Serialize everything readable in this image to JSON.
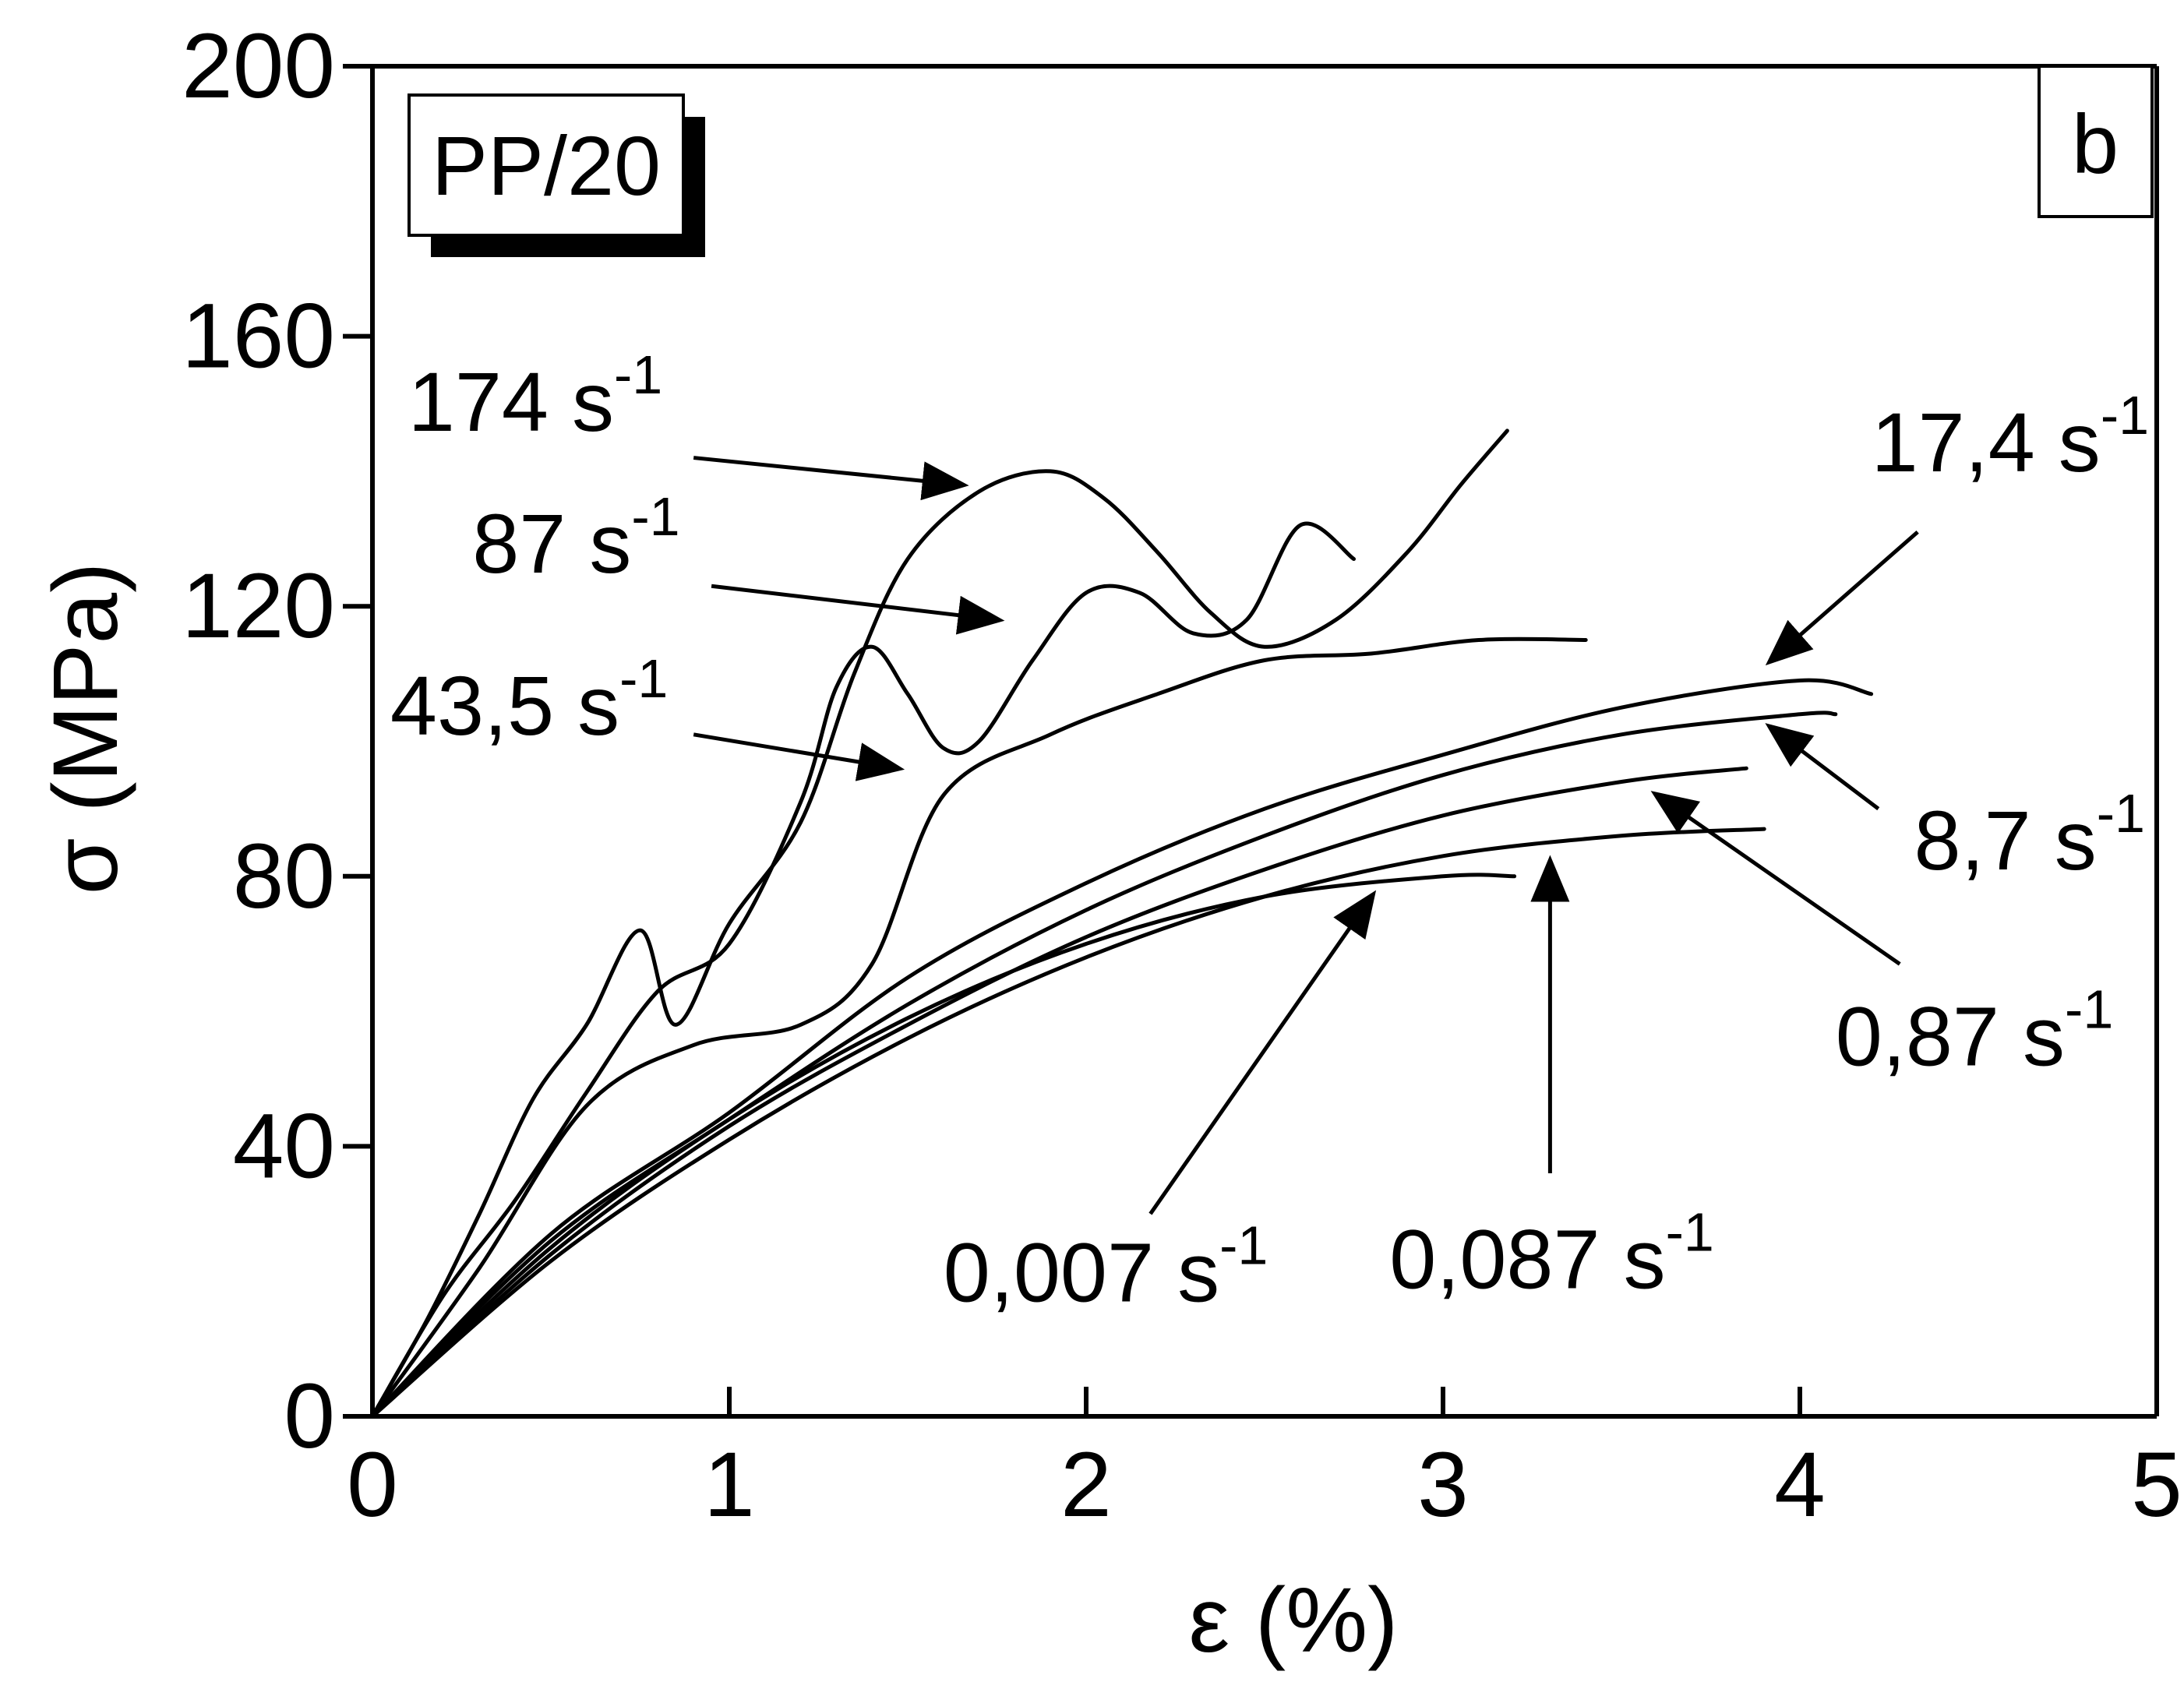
{
  "chart_data": {
    "type": "line",
    "title": "",
    "xlabel": "ε (%)",
    "ylabel": "σ (MPa)",
    "xlim": [
      0,
      5
    ],
    "ylim": [
      0,
      200
    ],
    "xticks": [
      0,
      1,
      2,
      3,
      4,
      5
    ],
    "yticks": [
      0,
      40,
      80,
      120,
      160,
      200
    ],
    "grid": false,
    "panel_label": "b",
    "material_label": "PP/20",
    "series": [
      {
        "name": "174 s-1",
        "rate": "174",
        "unit": "s",
        "exp": "-1",
        "x": [
          0,
          0.15,
          0.3,
          0.45,
          0.6,
          0.75,
          0.85,
          1.0,
          1.2,
          1.35,
          1.5,
          1.7,
          1.9,
          2.05,
          2.2,
          2.35,
          2.5,
          2.7,
          2.9,
          3.05,
          3.18
        ],
        "y": [
          0,
          14,
          30,
          47,
          58,
          72,
          58,
          73,
          88,
          110,
          127,
          137,
          140,
          136,
          128,
          119,
          114,
          118,
          128,
          138,
          146
        ]
      },
      {
        "name": "87 s-1",
        "rate": "87",
        "unit": "s",
        "exp": "-1",
        "x": [
          0,
          0.2,
          0.4,
          0.6,
          0.8,
          1.0,
          1.2,
          1.3,
          1.4,
          1.5,
          1.6,
          1.7,
          1.85,
          2.0,
          2.15,
          2.3,
          2.45,
          2.6,
          2.75
        ],
        "y": [
          0,
          18,
          32,
          48,
          63,
          70,
          91,
          108,
          114,
          107,
          99,
          100,
          112,
          122,
          122,
          116,
          118,
          132,
          127
        ]
      },
      {
        "name": "43,5 s-1",
        "rate": "43,5",
        "unit": "s",
        "exp": "-1",
        "x": [
          0,
          0.3,
          0.6,
          0.9,
          1.2,
          1.4,
          1.6,
          1.9,
          2.2,
          2.5,
          2.8,
          3.1,
          3.4
        ],
        "y": [
          0,
          22,
          46,
          55,
          58,
          67,
          92,
          101,
          107,
          112,
          113,
          115,
          115
        ]
      },
      {
        "name": "17,4 s-1",
        "rate": "17,4",
        "unit": "s",
        "exp": "-1",
        "x": [
          0,
          0.5,
          1.0,
          1.5,
          2.0,
          2.5,
          3.0,
          3.5,
          4.0,
          4.2
        ],
        "y": [
          0,
          27,
          45,
          65,
          79,
          90,
          98,
          105,
          109,
          107
        ]
      },
      {
        "name": "8,7 s-1",
        "rate": "8,7",
        "unit": "s",
        "exp": "-1",
        "x": [
          0,
          0.5,
          1.0,
          1.5,
          2.0,
          2.5,
          3.0,
          3.5,
          4.0,
          4.1
        ],
        "y": [
          0,
          26,
          44,
          61,
          75,
          86,
          95,
          101,
          104,
          104
        ]
      },
      {
        "name": "0,87 s-1",
        "rate": "0,87",
        "unit": "s",
        "exp": "-1",
        "x": [
          0,
          0.5,
          1.0,
          1.5,
          2.0,
          2.5,
          3.0,
          3.5,
          3.85
        ],
        "y": [
          0,
          24,
          43,
          58,
          71,
          81,
          89,
          94,
          96
        ]
      },
      {
        "name": "0,087 s-1",
        "rate": "0,087",
        "unit": "s",
        "exp": "-1",
        "x": [
          0,
          0.5,
          1.0,
          1.5,
          2.0,
          2.5,
          3.0,
          3.5,
          3.9
        ],
        "y": [
          0,
          23,
          41,
          56,
          68,
          77,
          83,
          86,
          87
        ]
      },
      {
        "name": "0,007 s-1",
        "rate": "0,007",
        "unit": "s",
        "exp": "-1",
        "x": [
          0,
          0.5,
          1.0,
          1.5,
          2.0,
          2.5,
          3.0,
          3.2
        ],
        "y": [
          0,
          25,
          44,
          59,
          70,
          77,
          80,
          80
        ]
      }
    ],
    "annotations": [
      {
        "series": "174 s-1",
        "label_x": 0.1,
        "label_y": 146,
        "tail_x": 0.9,
        "tail_y": 142,
        "head_x": 1.65,
        "head_y": 138
      },
      {
        "series": "87 s-1",
        "label_x": 0.28,
        "label_y": 125,
        "tail_x": 0.95,
        "tail_y": 123,
        "head_x": 1.75,
        "head_y": 118
      },
      {
        "series": "43,5 s-1",
        "label_x": 0.05,
        "label_y": 101,
        "tail_x": 0.9,
        "tail_y": 101,
        "head_x": 1.47,
        "head_y": 96
      },
      {
        "series": "17,4 s-1",
        "label_x": 4.2,
        "label_y": 140,
        "tail_x": 4.33,
        "tail_y": 131,
        "head_x": 3.92,
        "head_y": 112
      },
      {
        "series": "8,7 s-1",
        "label_x": 4.32,
        "label_y": 81,
        "tail_x": 4.22,
        "tail_y": 90,
        "head_x": 3.92,
        "head_y": 102
      },
      {
        "series": "0,87 s-1",
        "label_x": 4.1,
        "label_y": 52,
        "tail_x": 4.28,
        "tail_y": 67,
        "head_x": 3.6,
        "head_y": 92
      },
      {
        "series": "0,087 s-1",
        "label_x": 2.85,
        "label_y": 19,
        "tail_x": 3.3,
        "tail_y": 36,
        "head_x": 3.3,
        "head_y": 82
      },
      {
        "series": "0,007 s-1",
        "label_x": 1.6,
        "label_y": 17,
        "tail_x": 2.18,
        "tail_y": 30,
        "head_x": 2.8,
        "head_y": 77
      }
    ]
  }
}
